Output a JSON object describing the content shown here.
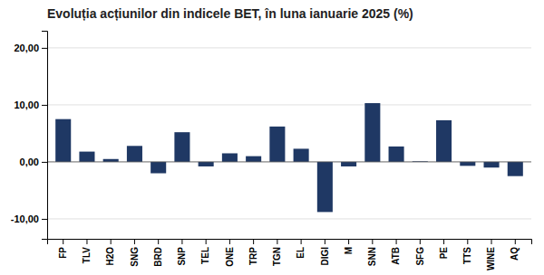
{
  "chart_data": {
    "type": "bar",
    "title": "Evoluția acțiunilor din indicele BET, în luna ianuarie 2025 (%)",
    "categories": [
      "FP",
      "TLV",
      "H2O",
      "SNG",
      "BRD",
      "SNP",
      "TEL",
      "ONE",
      "TRP",
      "TGN",
      "EL",
      "DIGI",
      "M",
      "SNN",
      "ATB",
      "SFG",
      "PE",
      "TTS",
      "WINE",
      "AQ"
    ],
    "values": [
      7.5,
      1.8,
      0.5,
      2.8,
      -2.0,
      5.2,
      -0.8,
      1.5,
      1.0,
      6.2,
      2.3,
      -8.8,
      -0.8,
      10.3,
      2.7,
      0.1,
      7.3,
      -0.7,
      -1.0,
      -2.5
    ],
    "color": "#1F3864",
    "ylim": [
      -13.5,
      23
    ],
    "yticks": [
      {
        "value": -10,
        "label": "-10,00"
      },
      {
        "value": 0,
        "label": "0,00"
      },
      {
        "value": 10,
        "label": "10,00"
      },
      {
        "value": 20,
        "label": "20,00"
      }
    ],
    "grid": true
  }
}
